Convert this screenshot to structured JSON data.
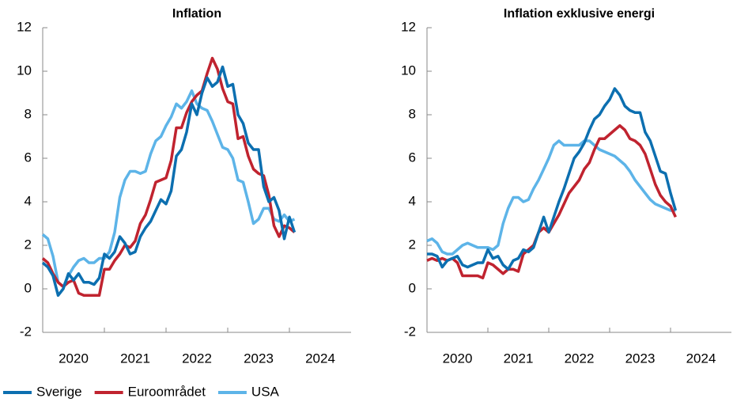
{
  "chart_data": [
    {
      "type": "line",
      "title": "Inflation",
      "x": [
        2020,
        2020.083,
        2020.167,
        2020.25,
        2020.333,
        2020.417,
        2020.5,
        2020.583,
        2020.667,
        2020.75,
        2020.833,
        2020.917,
        2021,
        2021.083,
        2021.167,
        2021.25,
        2021.333,
        2021.417,
        2021.5,
        2021.583,
        2021.667,
        2021.75,
        2021.833,
        2021.917,
        2022,
        2022.083,
        2022.167,
        2022.25,
        2022.333,
        2022.417,
        2022.5,
        2022.583,
        2022.667,
        2022.75,
        2022.833,
        2022.917,
        2023,
        2023.083,
        2023.167,
        2023.25,
        2023.333,
        2023.417,
        2023.5,
        2023.583,
        2023.667,
        2023.75,
        2023.833,
        2023.917,
        2024,
        2024.083
      ],
      "series": [
        {
          "name": "Sverige",
          "color": "#0c6fb0",
          "values": [
            1.2,
            1.0,
            0.6,
            -0.3,
            0.0,
            0.7,
            0.4,
            0.7,
            0.3,
            0.3,
            0.2,
            0.5,
            1.6,
            1.4,
            1.7,
            2.4,
            2.1,
            1.6,
            1.7,
            2.4,
            2.8,
            3.1,
            3.6,
            4.1,
            3.9,
            4.5,
            6.1,
            6.4,
            7.2,
            8.5,
            8.0,
            9.0,
            9.7,
            9.3,
            9.5,
            10.2,
            9.3,
            9.4,
            8.0,
            7.6,
            6.7,
            6.4,
            6.4,
            4.7,
            4.0,
            4.2,
            3.6,
            2.3,
            3.3,
            2.6
          ]
        },
        {
          "name": "Euroområdet",
          "color": "#c0232f",
          "values": [
            1.4,
            1.2,
            0.7,
            0.3,
            0.1,
            0.3,
            0.4,
            -0.2,
            -0.3,
            -0.3,
            -0.3,
            -0.3,
            0.9,
            0.9,
            1.3,
            1.6,
            2.0,
            1.9,
            2.2,
            3.0,
            3.4,
            4.1,
            4.9,
            5.0,
            5.1,
            5.9,
            7.4,
            7.4,
            8.1,
            8.6,
            8.9,
            9.1,
            9.9,
            10.6,
            10.1,
            9.2,
            8.6,
            8.5,
            6.9,
            7.0,
            6.1,
            5.5,
            5.3,
            5.2,
            4.3,
            2.9,
            2.4,
            2.9,
            2.8,
            2.6
          ]
        },
        {
          "name": "USA",
          "color": "#5db4e8",
          "values": [
            2.5,
            2.3,
            1.5,
            0.3,
            0.1,
            0.6,
            1.0,
            1.3,
            1.4,
            1.2,
            1.2,
            1.4,
            1.4,
            1.7,
            2.6,
            4.2,
            5.0,
            5.4,
            5.4,
            5.3,
            5.4,
            6.2,
            6.8,
            7.0,
            7.5,
            7.9,
            8.5,
            8.3,
            8.6,
            9.1,
            8.5,
            8.3,
            8.2,
            7.7,
            7.1,
            6.5,
            6.4,
            6.0,
            5.0,
            4.9,
            4.0,
            3.0,
            3.2,
            3.7,
            3.7,
            3.2,
            3.1,
            3.4,
            3.1,
            3.2
          ]
        }
      ],
      "xlim": [
        2020,
        2025
      ],
      "xticks": [
        {
          "value": 2020.5,
          "label": "2020"
        },
        {
          "value": 2021.5,
          "label": "2021"
        },
        {
          "value": 2022.5,
          "label": "2022"
        },
        {
          "value": 2023.5,
          "label": "2023"
        },
        {
          "value": 2024.5,
          "label": "2024"
        }
      ],
      "ylim": [
        -2,
        12
      ],
      "yticks": [
        -2,
        0,
        2,
        4,
        6,
        8,
        10,
        12
      ]
    },
    {
      "type": "line",
      "title": "Inflation exklusive energi",
      "x": [
        2020,
        2020.083,
        2020.167,
        2020.25,
        2020.333,
        2020.417,
        2020.5,
        2020.583,
        2020.667,
        2020.75,
        2020.833,
        2020.917,
        2021,
        2021.083,
        2021.167,
        2021.25,
        2021.333,
        2021.417,
        2021.5,
        2021.583,
        2021.667,
        2021.75,
        2021.833,
        2021.917,
        2022,
        2022.083,
        2022.167,
        2022.25,
        2022.333,
        2022.417,
        2022.5,
        2022.583,
        2022.667,
        2022.75,
        2022.833,
        2022.917,
        2023,
        2023.083,
        2023.167,
        2023.25,
        2023.333,
        2023.417,
        2023.5,
        2023.583,
        2023.667,
        2023.75,
        2023.833,
        2023.917,
        2024,
        2024.083
      ],
      "series": [
        {
          "name": "Sverige",
          "color": "#0c6fb0",
          "values": [
            1.6,
            1.6,
            1.5,
            1.0,
            1.3,
            1.4,
            1.5,
            1.1,
            1.0,
            1.1,
            1.2,
            1.2,
            1.8,
            1.4,
            1.5,
            1.1,
            0.9,
            1.3,
            1.4,
            1.8,
            1.7,
            1.9,
            2.6,
            3.3,
            2.6,
            3.3,
            4.0,
            4.6,
            5.3,
            6.0,
            6.3,
            6.7,
            7.3,
            7.8,
            8.0,
            8.4,
            8.7,
            9.2,
            8.9,
            8.4,
            8.2,
            8.1,
            8.1,
            7.2,
            6.8,
            6.1,
            5.4,
            5.3,
            4.4,
            3.6
          ]
        },
        {
          "name": "Euroområdet",
          "color": "#c0232f",
          "values": [
            1.3,
            1.4,
            1.3,
            1.4,
            1.3,
            1.4,
            1.2,
            0.6,
            0.6,
            0.6,
            0.6,
            0.5,
            1.2,
            1.1,
            0.9,
            0.7,
            0.9,
            0.9,
            0.8,
            1.6,
            1.8,
            2.0,
            2.6,
            2.8,
            2.6,
            3.0,
            3.4,
            3.9,
            4.4,
            4.7,
            5.0,
            5.5,
            5.8,
            6.4,
            6.9,
            6.9,
            7.1,
            7.3,
            7.5,
            7.3,
            6.9,
            6.8,
            6.6,
            6.2,
            5.5,
            4.8,
            4.3,
            4.0,
            3.8,
            3.3
          ]
        },
        {
          "name": "USA",
          "color": "#5db4e8",
          "values": [
            2.2,
            2.3,
            2.1,
            1.7,
            1.6,
            1.6,
            1.8,
            2.0,
            2.1,
            2.0,
            1.9,
            1.9,
            1.9,
            1.8,
            2.0,
            3.0,
            3.7,
            4.2,
            4.2,
            4.0,
            4.1,
            4.6,
            5.0,
            5.5,
            6.0,
            6.6,
            6.8,
            6.6,
            6.6,
            6.6,
            6.6,
            6.8,
            6.8,
            6.6,
            6.4,
            6.3,
            6.2,
            6.1,
            5.9,
            5.7,
            5.4,
            5.0,
            4.7,
            4.4,
            4.1,
            3.9,
            3.8,
            3.7,
            3.6,
            3.6
          ]
        }
      ],
      "xlim": [
        2020,
        2025
      ],
      "xticks": [
        {
          "value": 2020.5,
          "label": "2020"
        },
        {
          "value": 2021.5,
          "label": "2021"
        },
        {
          "value": 2022.5,
          "label": "2022"
        },
        {
          "value": 2023.5,
          "label": "2023"
        },
        {
          "value": 2024.5,
          "label": "2024"
        }
      ],
      "ylim": [
        -2,
        12
      ],
      "yticks": [
        -2,
        0,
        2,
        4,
        6,
        8,
        10,
        12
      ]
    }
  ]
}
